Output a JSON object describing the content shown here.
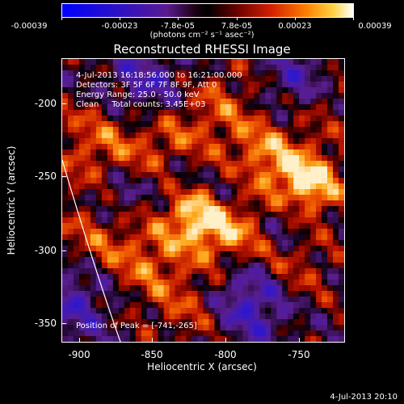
{
  "colorbar": {
    "ticks": [
      "-0.00039",
      "-0.00023",
      "-7.8e-05",
      "7.8e-05",
      "0.00023",
      "0.00039"
    ],
    "units": "(photons cm⁻² s⁻¹ asec⁻²)"
  },
  "title": "Reconstructed RHESSI Image",
  "info": {
    "time_range": "4-Jul-2013 16:18:56.000 to 16:21:00.000",
    "detectors": "Detectors: 3F 5F 6F 7F 8F 9F, Att 0",
    "energy": "Energy Range: 25.0 - 50.0 keV",
    "method": "Clean     Total counts: 3.45E+03",
    "peak": "Position of Peak = [-741,-265]"
  },
  "axes": {
    "xlabel": "Heliocentric X (arcsec)",
    "ylabel": "Heliocentric Y (arcsec)",
    "xticks": [
      "-900",
      "-850",
      "-800",
      "-750"
    ],
    "yticks": [
      "-200",
      "-250",
      "-300",
      "-350"
    ],
    "xrange": [
      -912,
      -716
    ],
    "yrange": [
      -363,
      -168
    ]
  },
  "footer": "4-Jul-2013 20:10"
}
